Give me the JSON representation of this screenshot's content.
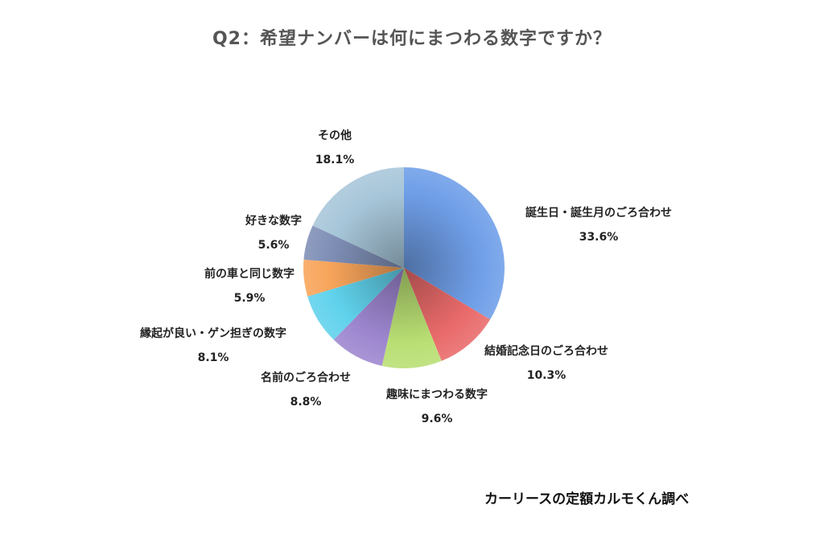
{
  "chart_data": {
    "type": "pie",
    "title": "Q2：希望ナンバーは何にまつわる数字ですか？",
    "slices": [
      {
        "label": "誕生日・誕生月のごろ合わせ",
        "value": 33.6,
        "value_label": "33.6%",
        "color": "#6f9ee8"
      },
      {
        "label": "結婚記念日のごろ合わせ",
        "value": 10.3,
        "value_label": "10.3%",
        "color": "#e96a6a"
      },
      {
        "label": "趣味にまつわる数字",
        "value": 9.6,
        "value_label": "9.6%",
        "color": "#b9df73"
      },
      {
        "label": "名前のごろ合わせ",
        "value": 8.8,
        "value_label": "8.8%",
        "color": "#9d86cf"
      },
      {
        "label": "縁起が良い・ゲン担ぎの数字",
        "value": 8.1,
        "value_label": "8.1%",
        "color": "#60d2ec"
      },
      {
        "label": "前の車と同じ数字",
        "value": 5.9,
        "value_label": "5.9%",
        "color": "#f8a55b"
      },
      {
        "label": "好きな数字",
        "value": 5.6,
        "value_label": "5.6%",
        "color": "#7f8fb6"
      },
      {
        "label": "その他",
        "value": 18.1,
        "value_label": "18.1%",
        "color": "#a7c6d9"
      }
    ]
  },
  "footer": {
    "source": "カーリースの定額カルモくん調べ"
  }
}
